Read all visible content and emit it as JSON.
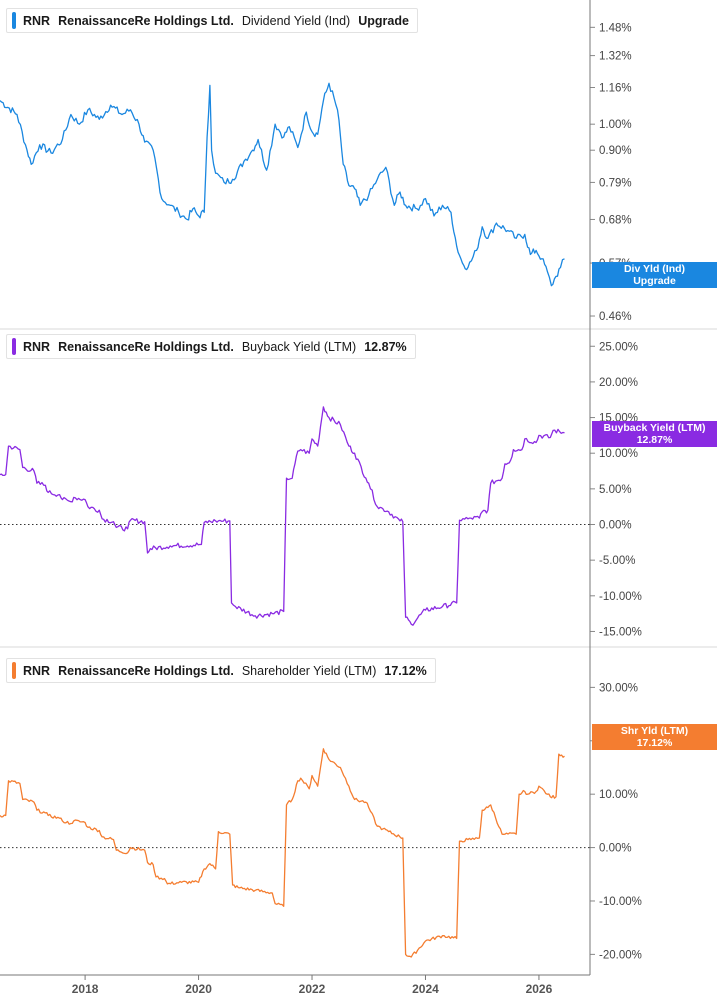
{
  "x_axis": {
    "labels": [
      "2018",
      "2020",
      "2022",
      "2024",
      "2026"
    ],
    "range": [
      2016.5,
      2026.9
    ]
  },
  "chart_data": [
    {
      "type": "line",
      "legend": {
        "ticker": "RNR",
        "company": "RenaissanceRe Holdings Ltd.",
        "metric": "Dividend Yield (Ind)",
        "value": "Upgrade"
      },
      "color": "#1a87e0",
      "y_scale": "log",
      "y_ticks": [
        "1.48%",
        "1.32%",
        "1.16%",
        "1.00%",
        "0.90%",
        "0.79%",
        "0.68%",
        "0.57%",
        "0.46%"
      ],
      "ylim": [
        0.44,
        1.62
      ],
      "zero_line": false,
      "tag": {
        "line1": "Div Yld (Ind)",
        "line2": "Upgrade",
        "value": 0.57
      },
      "series": [
        {
          "x": [
            2016.5,
            2016.8,
            2016.95,
            2017.05,
            2017.2,
            2017.4,
            2017.6,
            2017.75,
            2017.9,
            2018.05,
            2018.25,
            2018.45,
            2018.65,
            2018.8,
            2018.95,
            2019.05,
            2019.2,
            2019.35,
            2019.5,
            2019.65,
            2019.8,
            2019.9,
            2020.0,
            2020.1,
            2020.15,
            2020.2,
            2020.23,
            2020.3,
            2020.45,
            2020.6,
            2020.8,
            2020.95,
            2021.05,
            2021.2,
            2021.35,
            2021.5,
            2021.6,
            2021.75,
            2021.9,
            2022.0,
            2022.1,
            2022.2,
            2022.3,
            2022.45,
            2022.55,
            2022.65,
            2022.75,
            2022.85,
            2023.0,
            2023.15,
            2023.3,
            2023.45,
            2023.55,
            2023.65,
            2023.85,
            2024.0,
            2024.15,
            2024.3,
            2024.45,
            2024.55,
            2024.65,
            2024.75,
            2024.9,
            2025.0,
            2025.1,
            2025.25,
            2025.45,
            2025.6,
            2025.75,
            2025.85,
            2025.95,
            2026.05,
            2026.15,
            2026.22,
            2026.3,
            2026.38,
            2026.45
          ],
          "y": [
            1.1,
            1.04,
            0.92,
            0.85,
            0.92,
            0.89,
            0.94,
            1.04,
            1.0,
            1.06,
            1.02,
            1.08,
            1.04,
            1.06,
            1.0,
            0.93,
            0.9,
            0.74,
            0.72,
            0.7,
            0.68,
            0.71,
            0.69,
            0.7,
            0.95,
            1.17,
            0.9,
            0.82,
            0.79,
            0.8,
            0.86,
            0.9,
            0.94,
            0.83,
            1.0,
            0.95,
            0.99,
            0.91,
            1.05,
            0.97,
            0.96,
            1.1,
            1.18,
            1.06,
            0.85,
            0.78,
            0.77,
            0.72,
            0.75,
            0.8,
            0.84,
            0.72,
            0.76,
            0.72,
            0.71,
            0.74,
            0.69,
            0.72,
            0.7,
            0.61,
            0.57,
            0.56,
            0.6,
            0.66,
            0.63,
            0.67,
            0.65,
            0.63,
            0.64,
            0.59,
            0.6,
            0.58,
            0.55,
            0.52,
            0.54,
            0.56,
            0.58
          ]
        }
      ]
    },
    {
      "type": "line",
      "legend": {
        "ticker": "RNR",
        "company": "RenaissanceRe Holdings Ltd.",
        "metric": "Buyback Yield (LTM)",
        "value": "12.87%"
      },
      "color": "#8a2be2",
      "y_scale": "linear",
      "y_ticks": [
        "25.00%",
        "20.00%",
        "15.00%",
        "10.00%",
        "5.00%",
        "0.00%",
        "-5.00%",
        "-10.00%",
        "-15.00%"
      ],
      "ylim": [
        -16.9,
        27.0
      ],
      "zero_line": true,
      "tag": {
        "line1": "Buyback Yield (LTM)",
        "line2": "12.87%",
        "value": 12.87
      },
      "series": [
        {
          "x": [
            2016.5,
            2016.6,
            2016.65,
            2016.85,
            2016.9,
            2017.1,
            2017.15,
            2017.3,
            2017.35,
            2017.55,
            2017.6,
            2017.75,
            2017.8,
            2018.0,
            2018.05,
            2018.25,
            2018.3,
            2018.5,
            2018.55,
            2018.75,
            2018.8,
            2019.05,
            2019.1,
            2019.15,
            2019.5,
            2020.05,
            2020.1,
            2020.3,
            2020.35,
            2020.55,
            2020.58,
            2020.65,
            2021.0,
            2021.3,
            2021.5,
            2021.55,
            2021.65,
            2021.75,
            2021.8,
            2021.95,
            2022.0,
            2022.1,
            2022.2,
            2022.3,
            2022.5,
            2022.65,
            2022.75,
            2022.95,
            2023.0,
            2023.15,
            2023.25,
            2023.35,
            2023.55,
            2023.6,
            2023.65,
            2023.75,
            2024.0,
            2024.3,
            2024.55,
            2024.6,
            2024.75,
            2024.8,
            2024.95,
            2025.0,
            2025.1,
            2025.15,
            2025.35,
            2025.4,
            2025.5,
            2025.55,
            2025.7,
            2025.75,
            2025.95,
            2026.0,
            2026.2,
            2026.25,
            2026.45
          ],
          "y": [
            7.0,
            7.0,
            11.0,
            10.5,
            8.0,
            7.5,
            5.8,
            5.5,
            4.5,
            4.2,
            3.5,
            3.2,
            3.8,
            3.5,
            2.5,
            2.0,
            0.8,
            0.4,
            -0.4,
            -0.6,
            0.6,
            0.4,
            -4.0,
            -3.4,
            -3.0,
            -2.8,
            0.3,
            0.5,
            0.5,
            0.5,
            -11.0,
            -11.5,
            -12.8,
            -12.5,
            -12.2,
            6.5,
            6.5,
            10.3,
            10.5,
            10.0,
            12.0,
            11.0,
            16.5,
            15.0,
            14.0,
            11.0,
            10.0,
            6.5,
            5.8,
            2.5,
            2.2,
            1.8,
            0.5,
            0.4,
            -13.0,
            -14.0,
            -12.0,
            -11.5,
            -11.0,
            0.6,
            0.8,
            0.9,
            0.9,
            1.8,
            2.0,
            5.8,
            6.5,
            8.5,
            9.0,
            10.5,
            10.5,
            12.0,
            11.5,
            12.5,
            12.2,
            13.2,
            12.87
          ]
        }
      ]
    },
    {
      "type": "line",
      "legend": {
        "ticker": "RNR",
        "company": "RenaissanceRe Holdings Ltd.",
        "metric": "Shareholder Yield (LTM)",
        "value": "17.12%"
      },
      "color": "#f47d30",
      "y_scale": "linear",
      "y_ticks": [
        "30.00%",
        "20.00%",
        "10.00%",
        "0.00%",
        "-10.00%",
        "-20.00%"
      ],
      "ylim": [
        -23.3,
        37.0
      ],
      "zero_line": true,
      "tag": {
        "line1": "Shr Yld (LTM)",
        "line2": "17.12%",
        "value": 17.12
      },
      "series": [
        {
          "x": [
            2016.5,
            2016.6,
            2016.65,
            2016.85,
            2016.9,
            2017.1,
            2017.15,
            2017.3,
            2017.35,
            2017.55,
            2017.6,
            2017.75,
            2017.8,
            2018.0,
            2018.05,
            2018.25,
            2018.3,
            2018.5,
            2018.55,
            2018.75,
            2018.8,
            2019.05,
            2019.1,
            2019.2,
            2019.25,
            2019.4,
            2019.45,
            2019.7,
            2020.0,
            2020.1,
            2020.2,
            2020.3,
            2020.35,
            2020.55,
            2020.6,
            2020.7,
            2021.0,
            2021.3,
            2021.35,
            2021.5,
            2021.55,
            2021.65,
            2021.75,
            2021.8,
            2021.95,
            2022.0,
            2022.1,
            2022.2,
            2022.3,
            2022.5,
            2022.65,
            2022.75,
            2022.95,
            2023.0,
            2023.15,
            2023.25,
            2023.35,
            2023.55,
            2023.6,
            2023.65,
            2023.75,
            2024.0,
            2024.3,
            2024.55,
            2024.6,
            2024.75,
            2024.8,
            2024.95,
            2025.0,
            2025.1,
            2025.15,
            2025.35,
            2025.4,
            2025.6,
            2025.65,
            2025.75,
            2025.8,
            2025.95,
            2026.0,
            2026.15,
            2026.2,
            2026.3,
            2026.35,
            2026.45
          ],
          "y": [
            6.0,
            6.0,
            12.5,
            12.0,
            9.0,
            8.5,
            7.0,
            6.5,
            6.0,
            5.5,
            5.0,
            4.5,
            5.0,
            4.7,
            3.8,
            3.2,
            2.0,
            1.5,
            -0.5,
            -1.0,
            0.0,
            -0.5,
            -2.8,
            -3.2,
            -5.5,
            -5.8,
            -6.8,
            -6.5,
            -6.5,
            -4.0,
            -3.0,
            -4.0,
            3.0,
            2.5,
            -7.0,
            -7.5,
            -8.0,
            -8.5,
            -10.5,
            -11.0,
            8.0,
            9.0,
            12.5,
            13.0,
            11.0,
            13.5,
            11.5,
            18.5,
            16.5,
            15.0,
            11.5,
            9.0,
            8.5,
            7.5,
            4.0,
            3.5,
            3.0,
            2.0,
            1.8,
            -20.0,
            -20.5,
            -17.5,
            -16.5,
            -17.0,
            1.2,
            1.5,
            1.5,
            1.8,
            7.0,
            7.5,
            8.0,
            2.5,
            2.5,
            2.5,
            10.0,
            10.5,
            10.0,
            10.5,
            11.5,
            10.0,
            9.5,
            9.5,
            17.5,
            17.12
          ]
        }
      ]
    }
  ]
}
